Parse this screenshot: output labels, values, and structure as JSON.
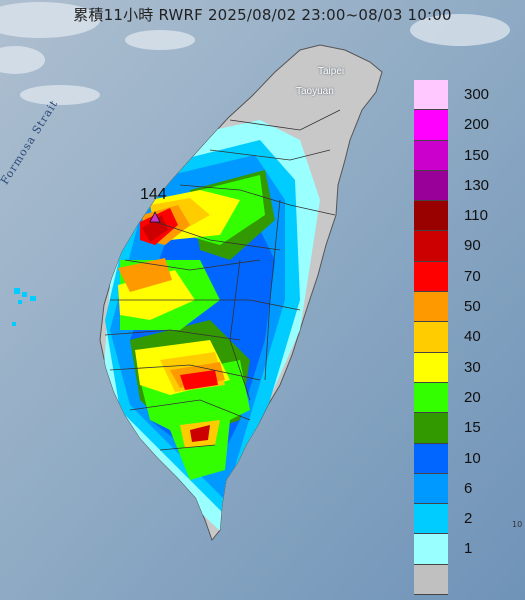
{
  "title": "累積11小時 RWRF 2025/08/02 23:00~08/03 10:00",
  "strait_label": "Formosa Strait",
  "cities": {
    "taipei": "Taipei",
    "taoyuan": "Taoyuan"
  },
  "max_marker": {
    "value_label": "144",
    "color": "#cc33cc"
  },
  "edge_label": "10",
  "legend": {
    "unit_levels": [
      {
        "label": "300",
        "color": "#ffc8ff"
      },
      {
        "label": "200",
        "color": "#ff00ff"
      },
      {
        "label": "150",
        "color": "#cc00cc"
      },
      {
        "label": "130",
        "color": "#990099"
      },
      {
        "label": "110",
        "color": "#990000"
      },
      {
        "label": "90",
        "color": "#cc0000"
      },
      {
        "label": "70",
        "color": "#ff0000"
      },
      {
        "label": "50",
        "color": "#ff9900"
      },
      {
        "label": "40",
        "color": "#ffcc00"
      },
      {
        "label": "30",
        "color": "#ffff00"
      },
      {
        "label": "20",
        "color": "#33ff00"
      },
      {
        "label": "15",
        "color": "#339900"
      },
      {
        "label": "10",
        "color": "#0066ff"
      },
      {
        "label": "6",
        "color": "#0099ff"
      },
      {
        "label": "2",
        "color": "#00ccff"
      },
      {
        "label": "1",
        "color": "#99ffff"
      },
      {
        "label": "",
        "color": "#c0c0c0"
      }
    ]
  }
}
